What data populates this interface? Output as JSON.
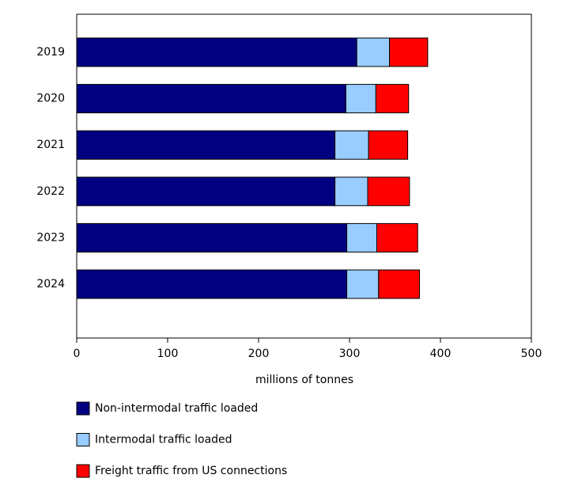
{
  "chart_data": {
    "type": "stacked-bar-horizontal",
    "categories": [
      "2019",
      "2020",
      "2021",
      "2022",
      "2023",
      "2024"
    ],
    "series": [
      {
        "name": "Non-intermodal traffic loaded",
        "color": "#000080",
        "values": [
          308,
          296,
          284,
          284,
          297,
          297
        ]
      },
      {
        "name": "Intermodal traffic loaded",
        "color": "#99ccff",
        "values": [
          36,
          33,
          37,
          36,
          33,
          35
        ]
      },
      {
        "name": "Freight traffic from US connections",
        "color": "#ff0000",
        "values": [
          42,
          36,
          43,
          46,
          45,
          45
        ]
      }
    ],
    "xlabel": "millions of tonnes",
    "xlim": [
      0,
      500
    ],
    "xticks": [
      0,
      100,
      200,
      300,
      400,
      500
    ],
    "legend": "bottom-left"
  }
}
